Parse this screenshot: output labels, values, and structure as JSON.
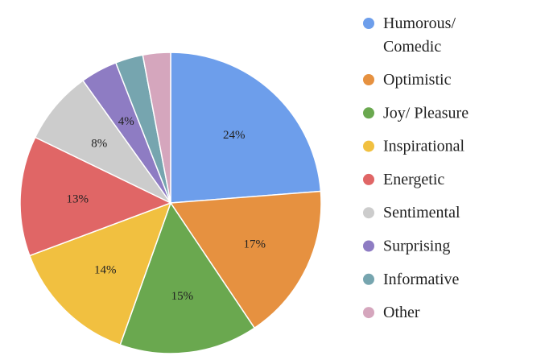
{
  "chart_data": {
    "type": "pie",
    "start_angle_deg": 0,
    "direction": "clockwise",
    "legend_position": "right",
    "slices": [
      {
        "name": "Humorous/ Comedic",
        "legend_lines": [
          "Humorous/",
          "Comedic"
        ],
        "value": 24,
        "label": "24%",
        "color": "#6D9EEB"
      },
      {
        "name": "Optimistic",
        "legend_lines": [
          "Optimistic"
        ],
        "value": 17,
        "label": "17%",
        "color": "#E69140"
      },
      {
        "name": "Joy/ Pleasure",
        "legend_lines": [
          "Joy/ Pleasure"
        ],
        "value": 15,
        "label": "15%",
        "color": "#6AA84F"
      },
      {
        "name": "Inspirational",
        "legend_lines": [
          "Inspirational"
        ],
        "value": 14,
        "label": "14%",
        "color": "#F1C040"
      },
      {
        "name": "Energetic",
        "legend_lines": [
          "Energetic"
        ],
        "value": 13,
        "label": "13%",
        "color": "#E06666"
      },
      {
        "name": "Sentimental",
        "legend_lines": [
          "Sentimental"
        ],
        "value": 8,
        "label": "8%",
        "color": "#CCCCCC"
      },
      {
        "name": "Surprising",
        "legend_lines": [
          "Surprising"
        ],
        "value": 4,
        "label": "4%",
        "color": "#8E7CC3"
      },
      {
        "name": "Informative",
        "legend_lines": [
          "Informative"
        ],
        "value": 3,
        "label": "",
        "color": "#76A5AF"
      },
      {
        "name": "Other",
        "legend_lines": [
          "Other"
        ],
        "value": 3,
        "label": "",
        "color": "#D5A6BD"
      }
    ]
  }
}
